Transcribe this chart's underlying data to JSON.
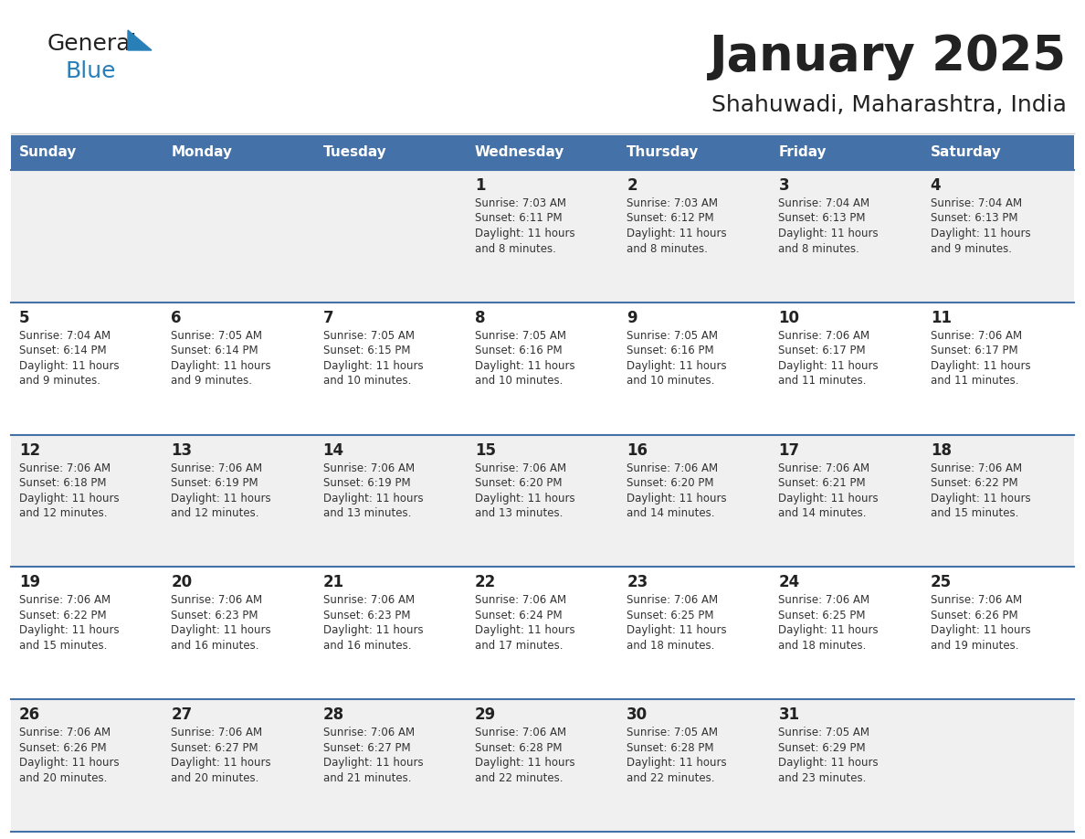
{
  "title": "January 2025",
  "subtitle": "Shahuwadi, Maharashtra, India",
  "header_bg_color": "#4472a8",
  "header_text_color": "#ffffff",
  "day_names": [
    "Sunday",
    "Monday",
    "Tuesday",
    "Wednesday",
    "Thursday",
    "Friday",
    "Saturday"
  ],
  "row_bg_even": "#f0f0f0",
  "row_bg_odd": "#ffffff",
  "cell_border_color": "#4472a8",
  "day_number_color": "#222222",
  "info_text_color": "#333333",
  "logo_general_color": "#222222",
  "logo_blue_color": "#2980b9",
  "logo_triangle_color": "#2980b9",
  "calendar": [
    [
      null,
      null,
      null,
      {
        "day": 1,
        "sunrise": "7:03 AM",
        "sunset": "6:11 PM",
        "daylight": "11 hours and 8 minutes."
      },
      {
        "day": 2,
        "sunrise": "7:03 AM",
        "sunset": "6:12 PM",
        "daylight": "11 hours and 8 minutes."
      },
      {
        "day": 3,
        "sunrise": "7:04 AM",
        "sunset": "6:13 PM",
        "daylight": "11 hours and 8 minutes."
      },
      {
        "day": 4,
        "sunrise": "7:04 AM",
        "sunset": "6:13 PM",
        "daylight": "11 hours and 9 minutes."
      }
    ],
    [
      {
        "day": 5,
        "sunrise": "7:04 AM",
        "sunset": "6:14 PM",
        "daylight": "11 hours and 9 minutes."
      },
      {
        "day": 6,
        "sunrise": "7:05 AM",
        "sunset": "6:14 PM",
        "daylight": "11 hours and 9 minutes."
      },
      {
        "day": 7,
        "sunrise": "7:05 AM",
        "sunset": "6:15 PM",
        "daylight": "11 hours and 10 minutes."
      },
      {
        "day": 8,
        "sunrise": "7:05 AM",
        "sunset": "6:16 PM",
        "daylight": "11 hours and 10 minutes."
      },
      {
        "day": 9,
        "sunrise": "7:05 AM",
        "sunset": "6:16 PM",
        "daylight": "11 hours and 10 minutes."
      },
      {
        "day": 10,
        "sunrise": "7:06 AM",
        "sunset": "6:17 PM",
        "daylight": "11 hours and 11 minutes."
      },
      {
        "day": 11,
        "sunrise": "7:06 AM",
        "sunset": "6:17 PM",
        "daylight": "11 hours and 11 minutes."
      }
    ],
    [
      {
        "day": 12,
        "sunrise": "7:06 AM",
        "sunset": "6:18 PM",
        "daylight": "11 hours and 12 minutes."
      },
      {
        "day": 13,
        "sunrise": "7:06 AM",
        "sunset": "6:19 PM",
        "daylight": "11 hours and 12 minutes."
      },
      {
        "day": 14,
        "sunrise": "7:06 AM",
        "sunset": "6:19 PM",
        "daylight": "11 hours and 13 minutes."
      },
      {
        "day": 15,
        "sunrise": "7:06 AM",
        "sunset": "6:20 PM",
        "daylight": "11 hours and 13 minutes."
      },
      {
        "day": 16,
        "sunrise": "7:06 AM",
        "sunset": "6:20 PM",
        "daylight": "11 hours and 14 minutes."
      },
      {
        "day": 17,
        "sunrise": "7:06 AM",
        "sunset": "6:21 PM",
        "daylight": "11 hours and 14 minutes."
      },
      {
        "day": 18,
        "sunrise": "7:06 AM",
        "sunset": "6:22 PM",
        "daylight": "11 hours and 15 minutes."
      }
    ],
    [
      {
        "day": 19,
        "sunrise": "7:06 AM",
        "sunset": "6:22 PM",
        "daylight": "11 hours and 15 minutes."
      },
      {
        "day": 20,
        "sunrise": "7:06 AM",
        "sunset": "6:23 PM",
        "daylight": "11 hours and 16 minutes."
      },
      {
        "day": 21,
        "sunrise": "7:06 AM",
        "sunset": "6:23 PM",
        "daylight": "11 hours and 16 minutes."
      },
      {
        "day": 22,
        "sunrise": "7:06 AM",
        "sunset": "6:24 PM",
        "daylight": "11 hours and 17 minutes."
      },
      {
        "day": 23,
        "sunrise": "7:06 AM",
        "sunset": "6:25 PM",
        "daylight": "11 hours and 18 minutes."
      },
      {
        "day": 24,
        "sunrise": "7:06 AM",
        "sunset": "6:25 PM",
        "daylight": "11 hours and 18 minutes."
      },
      {
        "day": 25,
        "sunrise": "7:06 AM",
        "sunset": "6:26 PM",
        "daylight": "11 hours and 19 minutes."
      }
    ],
    [
      {
        "day": 26,
        "sunrise": "7:06 AM",
        "sunset": "6:26 PM",
        "daylight": "11 hours and 20 minutes."
      },
      {
        "day": 27,
        "sunrise": "7:06 AM",
        "sunset": "6:27 PM",
        "daylight": "11 hours and 20 minutes."
      },
      {
        "day": 28,
        "sunrise": "7:06 AM",
        "sunset": "6:27 PM",
        "daylight": "11 hours and 21 minutes."
      },
      {
        "day": 29,
        "sunrise": "7:06 AM",
        "sunset": "6:28 PM",
        "daylight": "11 hours and 22 minutes."
      },
      {
        "day": 30,
        "sunrise": "7:05 AM",
        "sunset": "6:28 PM",
        "daylight": "11 hours and 22 minutes."
      },
      {
        "day": 31,
        "sunrise": "7:05 AM",
        "sunset": "6:29 PM",
        "daylight": "11 hours and 23 minutes."
      },
      null
    ]
  ]
}
